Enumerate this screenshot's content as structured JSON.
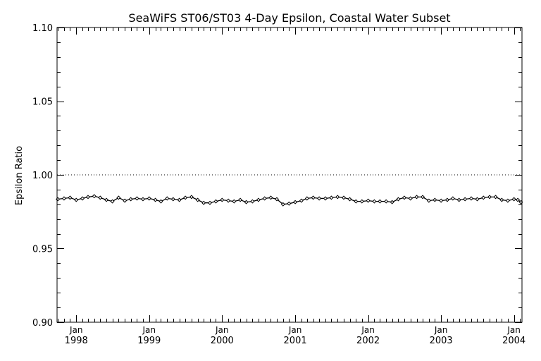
{
  "chart_data": {
    "type": "line",
    "title": "SeaWiFS ST06/ST03 4-Day Epsilon, Coastal Water Subset",
    "ylabel": "Epsilon Ratio",
    "xlabel": "",
    "ylim": [
      0.9,
      1.1
    ],
    "xlim": [
      "1997-09-27",
      "2004-02-10"
    ],
    "yticks": [
      "0.90",
      "0.95",
      "1.00",
      "1.05",
      "1.10"
    ],
    "xticks": [
      {
        "date": "1998-01-01",
        "month": "Jan",
        "year": "1998"
      },
      {
        "date": "1999-01-01",
        "month": "Jan",
        "year": "1999"
      },
      {
        "date": "2000-01-01",
        "month": "Jan",
        "year": "2000"
      },
      {
        "date": "2001-01-01",
        "month": "Jan",
        "year": "2001"
      },
      {
        "date": "2002-01-01",
        "month": "Jan",
        "year": "2002"
      },
      {
        "date": "2003-01-01",
        "month": "Jan",
        "year": "2003"
      },
      {
        "date": "2004-01-01",
        "month": "Jan",
        "year": "2004"
      }
    ],
    "reference_line": {
      "y": 1.0,
      "style": "dotted"
    },
    "grid": false,
    "series": [
      {
        "marker": "diamond",
        "points": [
          [
            "1997-10-01",
            0.9835
          ],
          [
            "1997-11-01",
            0.984
          ],
          [
            "1997-12-01",
            0.9845
          ],
          [
            "1998-01-01",
            0.983
          ],
          [
            "1998-02-01",
            0.984
          ],
          [
            "1998-03-01",
            0.985
          ],
          [
            "1998-04-01",
            0.9855
          ],
          [
            "1998-05-01",
            0.9845
          ],
          [
            "1998-06-01",
            0.983
          ],
          [
            "1998-07-01",
            0.982
          ],
          [
            "1998-08-01",
            0.9845
          ],
          [
            "1998-09-01",
            0.9825
          ],
          [
            "1998-10-01",
            0.9835
          ],
          [
            "1998-11-01",
            0.984
          ],
          [
            "1998-12-01",
            0.9835
          ],
          [
            "1999-01-01",
            0.984
          ],
          [
            "1999-02-01",
            0.983
          ],
          [
            "1999-03-01",
            0.982
          ],
          [
            "1999-04-01",
            0.984
          ],
          [
            "1999-05-01",
            0.9835
          ],
          [
            "1999-06-01",
            0.983
          ],
          [
            "1999-07-01",
            0.9845
          ],
          [
            "1999-08-01",
            0.985
          ],
          [
            "1999-09-01",
            0.983
          ],
          [
            "1999-10-01",
            0.981
          ],
          [
            "1999-11-01",
            0.981
          ],
          [
            "1999-12-01",
            0.982
          ],
          [
            "2000-01-01",
            0.983
          ],
          [
            "2000-02-01",
            0.9825
          ],
          [
            "2000-03-01",
            0.982
          ],
          [
            "2000-04-01",
            0.983
          ],
          [
            "2000-05-01",
            0.9815
          ],
          [
            "2000-06-01",
            0.982
          ],
          [
            "2000-07-01",
            0.983
          ],
          [
            "2000-08-01",
            0.984
          ],
          [
            "2000-09-01",
            0.9845
          ],
          [
            "2000-10-01",
            0.9835
          ],
          [
            "2000-11-01",
            0.98
          ],
          [
            "2000-12-01",
            0.9805
          ],
          [
            "2001-01-01",
            0.9815
          ],
          [
            "2001-02-01",
            0.9825
          ],
          [
            "2001-03-01",
            0.984
          ],
          [
            "2001-04-01",
            0.9845
          ],
          [
            "2001-05-01",
            0.984
          ],
          [
            "2001-06-01",
            0.984
          ],
          [
            "2001-07-01",
            0.9845
          ],
          [
            "2001-08-01",
            0.985
          ],
          [
            "2001-09-01",
            0.9845
          ],
          [
            "2001-10-01",
            0.9835
          ],
          [
            "2001-11-01",
            0.982
          ],
          [
            "2001-12-01",
            0.982
          ],
          [
            "2002-01-01",
            0.9825
          ],
          [
            "2002-02-01",
            0.982
          ],
          [
            "2002-03-01",
            0.982
          ],
          [
            "2002-04-01",
            0.982
          ],
          [
            "2002-05-01",
            0.9815
          ],
          [
            "2002-06-01",
            0.9835
          ],
          [
            "2002-07-01",
            0.9845
          ],
          [
            "2002-08-01",
            0.984
          ],
          [
            "2002-09-01",
            0.985
          ],
          [
            "2002-10-01",
            0.985
          ],
          [
            "2002-11-01",
            0.9825
          ],
          [
            "2002-12-01",
            0.983
          ],
          [
            "2003-01-01",
            0.9825
          ],
          [
            "2003-02-01",
            0.983
          ],
          [
            "2003-03-01",
            0.984
          ],
          [
            "2003-04-01",
            0.983
          ],
          [
            "2003-05-01",
            0.9835
          ],
          [
            "2003-06-01",
            0.984
          ],
          [
            "2003-07-01",
            0.9835
          ],
          [
            "2003-08-01",
            0.9845
          ],
          [
            "2003-09-01",
            0.985
          ],
          [
            "2003-10-01",
            0.985
          ],
          [
            "2003-11-01",
            0.983
          ],
          [
            "2003-12-01",
            0.9825
          ],
          [
            "2004-01-01",
            0.9835
          ],
          [
            "2004-01-20",
            0.983
          ],
          [
            "2004-02-05",
            0.9815
          ]
        ]
      }
    ]
  }
}
